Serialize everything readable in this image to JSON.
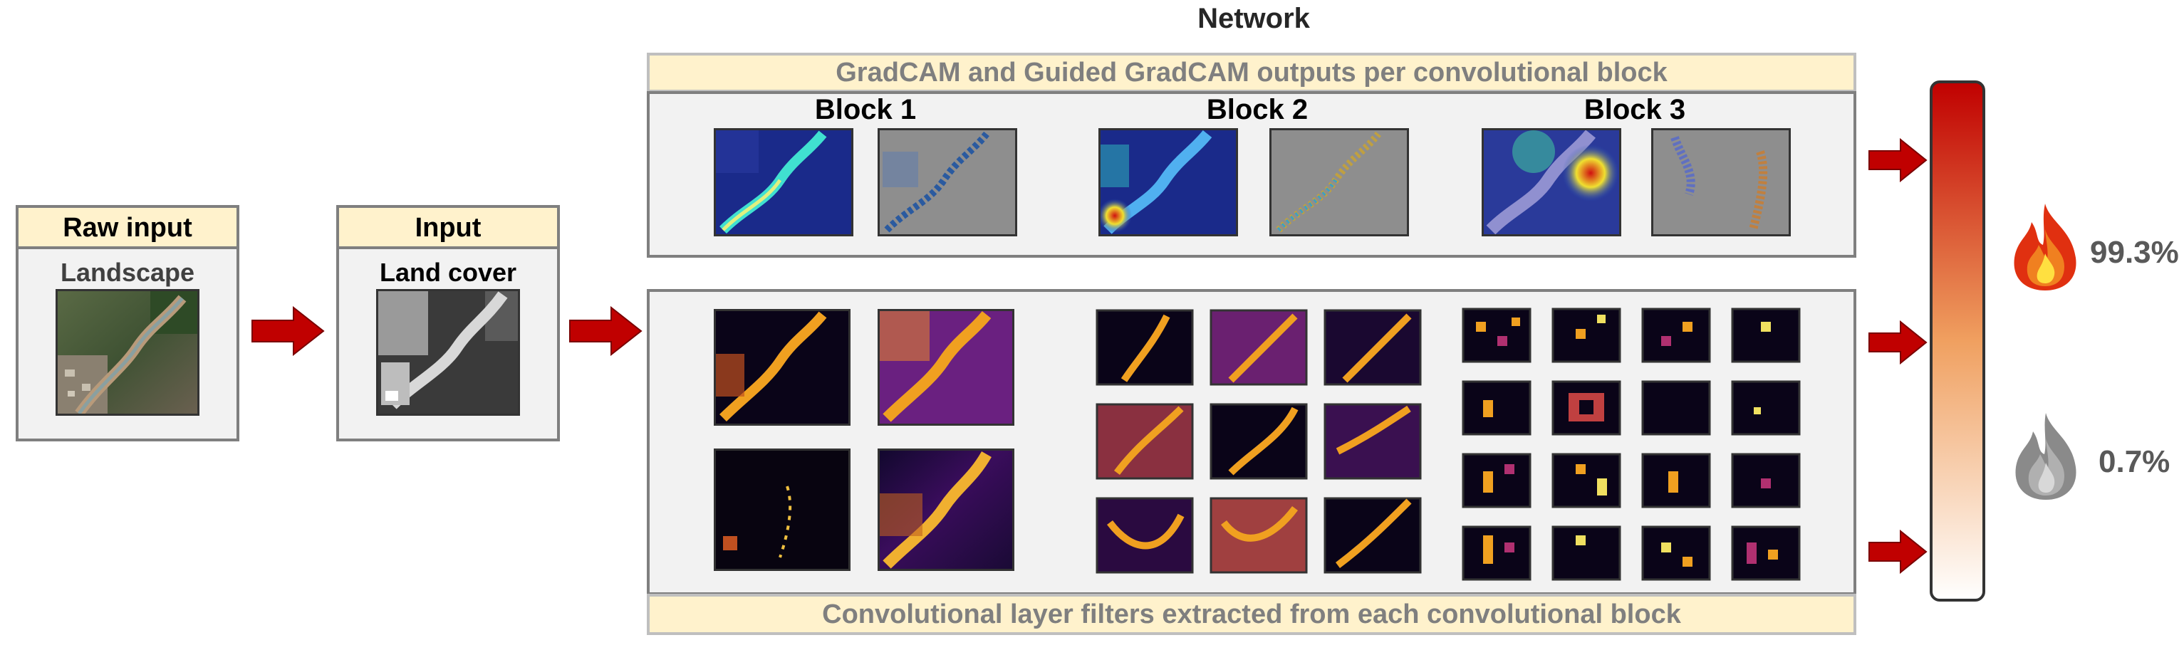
{
  "title": "Network",
  "raw_input": {
    "header": "Raw input",
    "caption": "Landscape"
  },
  "input": {
    "header": "Input",
    "caption": "Land cover"
  },
  "gradcam": {
    "banner": "GradCAM and Guided GradCAM outputs per convolutional block",
    "blocks": [
      "Block 1",
      "Block 2",
      "Block 3"
    ]
  },
  "filters": {
    "banner": "Convolutional layer filters extracted from each convolutional block"
  },
  "outputs": {
    "fire": "99.3%",
    "no_fire": "0.7%"
  },
  "colors": {
    "arrow": "#c00000",
    "panel_border": "#7f7f7f",
    "label_fill": "#fff2cc",
    "gauge_top": "#c00000",
    "gauge_bottom": "#ffffff"
  },
  "icons": [
    "fire-icon",
    "extinguished-fire-icon"
  ]
}
